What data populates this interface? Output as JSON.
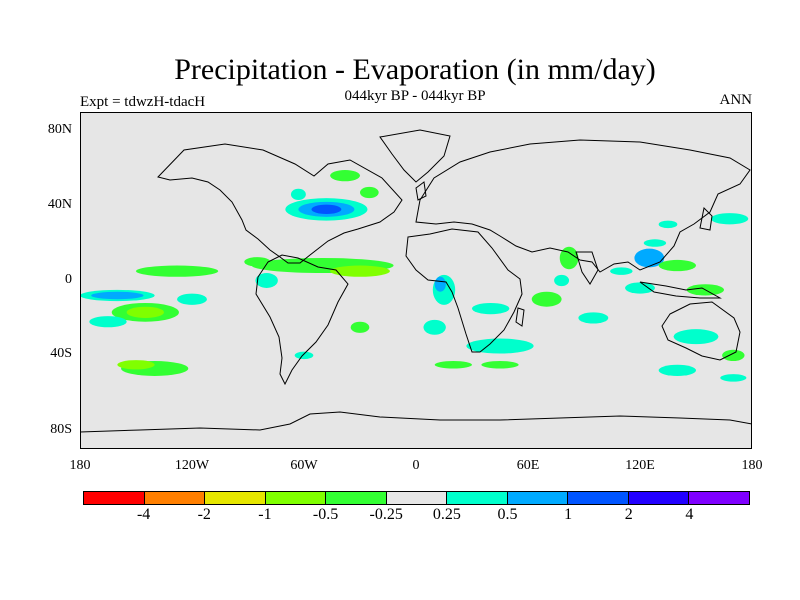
{
  "title": "Precipitation - Evaporation (in mm/day)",
  "subtitle": "044kyr BP - 044kyr BP",
  "experiment_label": "Expt = tdwzH-tdacH",
  "season_label": "ANN",
  "axes": {
    "lat_ticks": [
      "80N",
      "40N",
      "0",
      "40S",
      "80S"
    ],
    "lat_values": [
      80,
      40,
      0,
      -40,
      -80
    ],
    "lon_ticks": [
      "180",
      "120W",
      "60W",
      "0",
      "60E",
      "120E",
      "180"
    ],
    "lon_values": [
      -180,
      -120,
      -60,
      0,
      60,
      120,
      180
    ]
  },
  "colors": {
    "ocean_neutral": "#e6e6e6",
    "coast": "#000000",
    "bins": [
      "#ff0000",
      "#ff7f00",
      "#e6e600",
      "#80ff00",
      "#33ff33",
      "#e6e6e6",
      "#00ffcc",
      "#00aaff",
      "#0055ff",
      "#2200ff",
      "#7f00ff"
    ]
  },
  "legend": {
    "labels": [
      "-4",
      "-2",
      "-1",
      "-0.5",
      "-0.25",
      "0.25",
      "0.5",
      "1",
      "2",
      "4"
    ]
  },
  "chart_data": {
    "type": "heatmap",
    "title": "Precipitation - Evaporation (in mm/day)",
    "subtitle": "044kyr BP - 044kyr BP",
    "xlim": [
      -180,
      180
    ],
    "ylim": [
      -90,
      90
    ],
    "levels": [
      -4,
      -2,
      -1,
      -0.5,
      -0.25,
      0.25,
      0.5,
      1,
      2,
      4
    ],
    "anomaly_regions": [
      {
        "lon": -48,
        "lat": 38,
        "rlon": 22,
        "rlat": 6,
        "bin": 6
      },
      {
        "lon": -48,
        "lat": 38,
        "rlon": 15,
        "rlat": 4,
        "bin": 7
      },
      {
        "lon": -48,
        "lat": 38,
        "rlon": 8,
        "rlat": 2.5,
        "bin": 8
      },
      {
        "lon": -38,
        "lat": 56,
        "rlon": 8,
        "rlat": 3,
        "bin": 4
      },
      {
        "lon": -63,
        "lat": 46,
        "rlon": 4,
        "rlat": 3,
        "bin": 6
      },
      {
        "lon": -25,
        "lat": 47,
        "rlon": 5,
        "rlat": 3,
        "bin": 4
      },
      {
        "lon": -50,
        "lat": 8,
        "rlon": 38,
        "rlat": 4,
        "bin": 4
      },
      {
        "lon": -30,
        "lat": 5,
        "rlon": 16,
        "rlat": 3,
        "bin": 3
      },
      {
        "lon": -128,
        "lat": 5,
        "rlon": 22,
        "rlat": 3,
        "bin": 4
      },
      {
        "lon": -85,
        "lat": 10,
        "rlon": 7,
        "rlat": 2.5,
        "bin": 4
      },
      {
        "lon": -160,
        "lat": -8,
        "rlon": 20,
        "rlat": 3,
        "bin": 6
      },
      {
        "lon": -160,
        "lat": -8,
        "rlon": 14,
        "rlat": 2,
        "bin": 7
      },
      {
        "lon": -145,
        "lat": -17,
        "rlon": 18,
        "rlat": 5,
        "bin": 4
      },
      {
        "lon": -145,
        "lat": -17,
        "rlon": 10,
        "rlat": 3,
        "bin": 3
      },
      {
        "lon": -165,
        "lat": -22,
        "rlon": 10,
        "rlat": 3,
        "bin": 6
      },
      {
        "lon": -120,
        "lat": -10,
        "rlon": 8,
        "rlat": 3,
        "bin": 6
      },
      {
        "lon": -140,
        "lat": -47,
        "rlon": 18,
        "rlat": 4,
        "bin": 4
      },
      {
        "lon": -150,
        "lat": -45,
        "rlon": 10,
        "rlat": 2.5,
        "bin": 3
      },
      {
        "lon": -80,
        "lat": 0,
        "rlon": 6,
        "rlat": 4,
        "bin": 6
      },
      {
        "lon": -30,
        "lat": -25,
        "rlon": 5,
        "rlat": 3,
        "bin": 4
      },
      {
        "lon": 15,
        "lat": -5,
        "rlon": 6,
        "rlat": 8,
        "bin": 6
      },
      {
        "lon": 13,
        "lat": -2,
        "rlon": 3,
        "rlat": 4,
        "bin": 7
      },
      {
        "lon": 10,
        "lat": -25,
        "rlon": 6,
        "rlat": 4,
        "bin": 6
      },
      {
        "lon": 45,
        "lat": -35,
        "rlon": 18,
        "rlat": 4,
        "bin": 6
      },
      {
        "lon": 45,
        "lat": -45,
        "rlon": 10,
        "rlat": 2,
        "bin": 4
      },
      {
        "lon": 20,
        "lat": -45,
        "rlon": 10,
        "rlat": 2,
        "bin": 4
      },
      {
        "lon": 40,
        "lat": -15,
        "rlon": 10,
        "rlat": 3,
        "bin": 6
      },
      {
        "lon": 70,
        "lat": -10,
        "rlon": 8,
        "rlat": 4,
        "bin": 4
      },
      {
        "lon": 82,
        "lat": 12,
        "rlon": 5,
        "rlat": 6,
        "bin": 4
      },
      {
        "lon": 78,
        "lat": 0,
        "rlon": 4,
        "rlat": 3,
        "bin": 6
      },
      {
        "lon": 95,
        "lat": -20,
        "rlon": 8,
        "rlat": 3,
        "bin": 6
      },
      {
        "lon": 125,
        "lat": 12,
        "rlon": 8,
        "rlat": 5,
        "bin": 7
      },
      {
        "lon": 140,
        "lat": 8,
        "rlon": 10,
        "rlat": 3,
        "bin": 4
      },
      {
        "lon": 120,
        "lat": -4,
        "rlon": 8,
        "rlat": 3,
        "bin": 6
      },
      {
        "lon": 155,
        "lat": -5,
        "rlon": 10,
        "rlat": 3,
        "bin": 4
      },
      {
        "lon": 150,
        "lat": -30,
        "rlon": 12,
        "rlat": 4,
        "bin": 6
      },
      {
        "lon": 140,
        "lat": -48,
        "rlon": 10,
        "rlat": 3,
        "bin": 6
      },
      {
        "lon": 170,
        "lat": -40,
        "rlon": 6,
        "rlat": 3,
        "bin": 4
      },
      {
        "lon": 170,
        "lat": -52,
        "rlon": 7,
        "rlat": 2,
        "bin": 6
      },
      {
        "lon": 128,
        "lat": 20,
        "rlon": 6,
        "rlat": 2,
        "bin": 6
      },
      {
        "lon": 168,
        "lat": 33,
        "rlon": 10,
        "rlat": 3,
        "bin": 6
      },
      {
        "lon": 135,
        "lat": 30,
        "rlon": 5,
        "rlat": 2,
        "bin": 6
      },
      {
        "lon": 110,
        "lat": 5,
        "rlon": 6,
        "rlat": 2,
        "bin": 6
      },
      {
        "lon": -60,
        "lat": -40,
        "rlon": 5,
        "rlat": 2,
        "bin": 6
      }
    ]
  }
}
